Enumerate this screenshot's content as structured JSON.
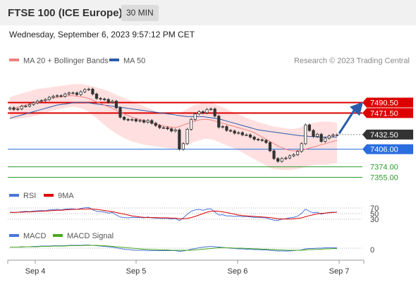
{
  "header": {
    "title": "FTSE 100 (ICE Europe)",
    "timeframe": "30 MIN",
    "datetime": "Wednesday, September 6, 2023 9:57:12 PM CET"
  },
  "colors": {
    "ma20": "#f08080",
    "ma50": "#2a5caa",
    "bollinger_fill": "#ffd9d9",
    "resistance": "#dd0000",
    "support": "#2e9b2e",
    "pivot": "#2a6de0",
    "last_price": "#333333",
    "rsi": "#4a74d9",
    "rsi_ma": "#dd0000",
    "macd": "#4a74d9",
    "macd_signal": "#4aaa22",
    "arrow": "#2a5caa"
  },
  "chart_data": [
    {
      "type": "candlestick",
      "legend": {
        "ma20_label": "MA 20 + Bollinger Bands",
        "ma50_label": "MA 50"
      },
      "credit": "Research © 2023 Trading Central",
      "ylim": [
        7340,
        7520
      ],
      "x_ticks": [
        "Sep 4",
        "Sep 5",
        "Sep 6",
        "Sep 7"
      ],
      "levels": [
        {
          "label": "7490.50",
          "value": 7490.5,
          "kind": "resistance"
        },
        {
          "label": "7471.50",
          "value": 7471.5,
          "kind": "resistance"
        },
        {
          "label": "7432.50",
          "value": 7432.5,
          "kind": "last"
        },
        {
          "label": "7406.00",
          "value": 7406.0,
          "kind": "pivot"
        },
        {
          "label": "7374.00",
          "value": 7374.0,
          "kind": "support"
        },
        {
          "label": "7355.00",
          "value": 7355.0,
          "kind": "support"
        }
      ],
      "close": [
        7481,
        7478,
        7479,
        7484,
        7484,
        7487,
        7490,
        7493,
        7494,
        7496,
        7500,
        7502,
        7503,
        7502,
        7506,
        7508,
        7508,
        7505,
        7510,
        7514,
        7515,
        7506,
        7498,
        7497,
        7496,
        7491,
        7493,
        7481,
        7464,
        7460,
        7459,
        7460,
        7457,
        7458,
        7455,
        7458,
        7453,
        7449,
        7445,
        7445,
        7443,
        7439,
        7441,
        7406,
        7416,
        7442,
        7460,
        7470,
        7474,
        7472,
        7478,
        7479,
        7466,
        7446,
        7447,
        7440,
        7439,
        7435,
        7436,
        7432,
        7432,
        7428,
        7424,
        7423,
        7422,
        7418,
        7403,
        7389,
        7384,
        7389,
        7390,
        7394,
        7396,
        7402,
        7416,
        7450,
        7440,
        7429,
        7433,
        7420,
        7426,
        7430,
        7432,
        7432
      ],
      "ma20": [
        7478,
        7480,
        7482,
        7484,
        7486,
        7488,
        7490,
        7492,
        7494,
        7495,
        7497,
        7499,
        7500,
        7501,
        7502,
        7503,
        7503,
        7502,
        7501,
        7500,
        7498,
        7495,
        7492,
        7489,
        7486,
        7483,
        7480,
        7476,
        7473,
        7470,
        7467,
        7464,
        7462,
        7460,
        7458,
        7456,
        7454,
        7452,
        7450,
        7448,
        7447,
        7446,
        7445,
        7447,
        7450,
        7452,
        7455,
        7457,
        7459,
        7460,
        7460,
        7459,
        7457,
        7455,
        7453,
        7451,
        7449,
        7447,
        7445,
        7443,
        7441,
        7439,
        7436,
        7432,
        7428,
        7424,
        7420,
        7416,
        7412,
        7409,
        7406,
        7404,
        7403,
        7403,
        7404,
        7406,
        7408,
        7410,
        7412,
        7414,
        7416,
        7418,
        7420,
        7422
      ],
      "bb_upper": [
        7500,
        7503,
        7505,
        7507,
        7509,
        7511,
        7513,
        7515,
        7516,
        7517,
        7518,
        7519,
        7520,
        7521,
        7522,
        7523,
        7524,
        7524,
        7524,
        7523,
        7522,
        7520,
        7518,
        7516,
        7514,
        7511,
        7508,
        7505,
        7502,
        7499,
        7496,
        7493,
        7490,
        7487,
        7484,
        7481,
        7478,
        7475,
        7473,
        7471,
        7469,
        7467,
        7465,
        7470,
        7475,
        7479,
        7483,
        7486,
        7488,
        7490,
        7491,
        7490,
        7488,
        7485,
        7482,
        7479,
        7475,
        7472,
        7469,
        7466,
        7463,
        7460,
        7458,
        7455,
        7453,
        7451,
        7449,
        7447,
        7446,
        7445,
        7444,
        7443,
        7443,
        7444,
        7446,
        7449,
        7452,
        7454,
        7455,
        7456,
        7456,
        7456,
        7455,
        7454
      ],
      "bb_lower": [
        7460,
        7460,
        7461,
        7462,
        7463,
        7464,
        7466,
        7468,
        7470,
        7472,
        7474,
        7476,
        7478,
        7479,
        7481,
        7482,
        7483,
        7482,
        7480,
        7478,
        7474,
        7468,
        7462,
        7456,
        7450,
        7444,
        7439,
        7434,
        7430,
        7426,
        7423,
        7420,
        7418,
        7416,
        7414,
        7413,
        7412,
        7411,
        7410,
        7409,
        7408,
        7407,
        7406,
        7408,
        7411,
        7414,
        7417,
        7420,
        7422,
        7424,
        7425,
        7424,
        7422,
        7419,
        7416,
        7413,
        7410,
        7407,
        7404,
        7400,
        7396,
        7392,
        7388,
        7384,
        7380,
        7376,
        7372,
        7370,
        7369,
        7368,
        7368,
        7368,
        7369,
        7370,
        7372,
        7374,
        7376,
        7377,
        7378,
        7378,
        7378,
        7379,
        7380,
        7381
      ],
      "ma50": [
        7462,
        7464,
        7466,
        7468,
        7470,
        7472,
        7474,
        7476,
        7478,
        7480,
        7482,
        7484,
        7486,
        7487,
        7488,
        7489,
        7490,
        7491,
        7491,
        7491,
        7490,
        7489,
        7488,
        7487,
        7486,
        7485,
        7484,
        7483,
        7482,
        7481,
        7480,
        7479,
        7478,
        7477,
        7476,
        7475,
        7474,
        7473,
        7472,
        7471,
        7470,
        7469,
        7468,
        7467,
        7466,
        7465,
        7465,
        7465,
        7465,
        7465,
        7464,
        7463,
        7462,
        7461,
        7459,
        7457,
        7455,
        7453,
        7451,
        7449,
        7447,
        7445,
        7443,
        7441,
        7440,
        7439,
        7438,
        7437,
        7436,
        7435,
        7434,
        7433,
        7432,
        7431,
        7430,
        7430,
        7429,
        7429,
        7428,
        7428,
        7428,
        7428,
        7428,
        7428
      ]
    },
    {
      "type": "line",
      "name": "RSI",
      "legend": {
        "rsi_label": "RSI",
        "ma_label": "9MA"
      },
      "ylim": [
        0,
        100
      ],
      "ticks": [
        {
          "label": "70",
          "value": 70
        },
        {
          "label": "50",
          "value": 50
        },
        {
          "label": "30",
          "value": 30
        }
      ],
      "rsi": [
        55,
        54,
        55,
        57,
        58,
        57,
        59,
        60,
        61,
        60,
        63,
        64,
        65,
        63,
        66,
        67,
        67,
        65,
        68,
        71,
        72,
        64,
        58,
        57,
        56,
        52,
        54,
        45,
        38,
        36,
        35,
        37,
        36,
        37,
        35,
        38,
        35,
        34,
        33,
        33,
        33,
        31,
        33,
        25,
        35,
        48,
        58,
        63,
        65,
        62,
        66,
        67,
        56,
        45,
        46,
        42,
        42,
        40,
        41,
        39,
        40,
        38,
        37,
        37,
        36,
        35,
        30,
        27,
        26,
        30,
        32,
        35,
        37,
        41,
        51,
        66,
        58,
        53,
        55,
        48,
        52,
        54,
        55,
        55
      ],
      "rsi_ma": [
        54,
        54,
        55,
        55,
        56,
        56,
        57,
        58,
        58,
        59,
        60,
        61,
        62,
        62,
        63,
        64,
        65,
        65,
        66,
        66,
        67,
        66,
        65,
        63,
        61,
        59,
        57,
        54,
        51,
        48,
        45,
        42,
        40,
        38,
        37,
        36,
        36,
        36,
        35,
        35,
        35,
        34,
        34,
        32,
        32,
        33,
        36,
        40,
        45,
        50,
        55,
        58,
        59,
        58,
        56,
        54,
        51,
        48,
        45,
        43,
        42,
        41,
        40,
        39,
        38,
        37,
        36,
        34,
        32,
        31,
        31,
        31,
        32,
        33,
        35,
        39,
        43,
        46,
        49,
        51,
        52,
        53,
        54,
        55
      ]
    },
    {
      "type": "line",
      "name": "MACD",
      "legend": {
        "macd_label": "MACD",
        "signal_label": "MACD Signal"
      },
      "ticks": [
        {
          "label": "0",
          "value": 0
        }
      ],
      "ylim": [
        -15,
        15
      ],
      "macd": [
        3,
        3,
        3,
        4,
        4,
        4,
        5,
        5,
        6,
        6,
        6,
        7,
        7,
        7,
        7,
        8,
        8,
        8,
        8,
        9,
        9,
        8,
        7,
        6,
        5,
        4,
        3,
        1,
        -1,
        -3,
        -4,
        -5,
        -6,
        -6,
        -6,
        -7,
        -7,
        -7,
        -7,
        -7,
        -7,
        -7,
        -7,
        -9,
        -8,
        -6,
        -3,
        -1,
        1,
        3,
        4,
        5,
        4,
        3,
        2,
        1,
        0,
        -1,
        -2,
        -2,
        -3,
        -3,
        -4,
        -4,
        -5,
        -5,
        -6,
        -7,
        -8,
        -8,
        -8,
        -8,
        -7,
        -6,
        -5,
        -2,
        -1,
        -1,
        0,
        0,
        1,
        1,
        1,
        1
      ],
      "signal": [
        3,
        3,
        3,
        3,
        4,
        4,
        4,
        4,
        5,
        5,
        5,
        6,
        6,
        6,
        6,
        7,
        7,
        7,
        7,
        8,
        8,
        8,
        8,
        7,
        7,
        6,
        5,
        4,
        3,
        2,
        1,
        0,
        -1,
        -2,
        -3,
        -3,
        -4,
        -4,
        -5,
        -5,
        -5,
        -6,
        -6,
        -6,
        -6,
        -6,
        -6,
        -5,
        -4,
        -3,
        -2,
        -1,
        0,
        1,
        1,
        1,
        1,
        0,
        0,
        0,
        -1,
        -1,
        -2,
        -2,
        -3,
        -3,
        -4,
        -4,
        -5,
        -5,
        -6,
        -6,
        -6,
        -6,
        -6,
        -5,
        -4,
        -4,
        -3,
        -3,
        -2,
        -2,
        -1,
        -1
      ]
    }
  ]
}
